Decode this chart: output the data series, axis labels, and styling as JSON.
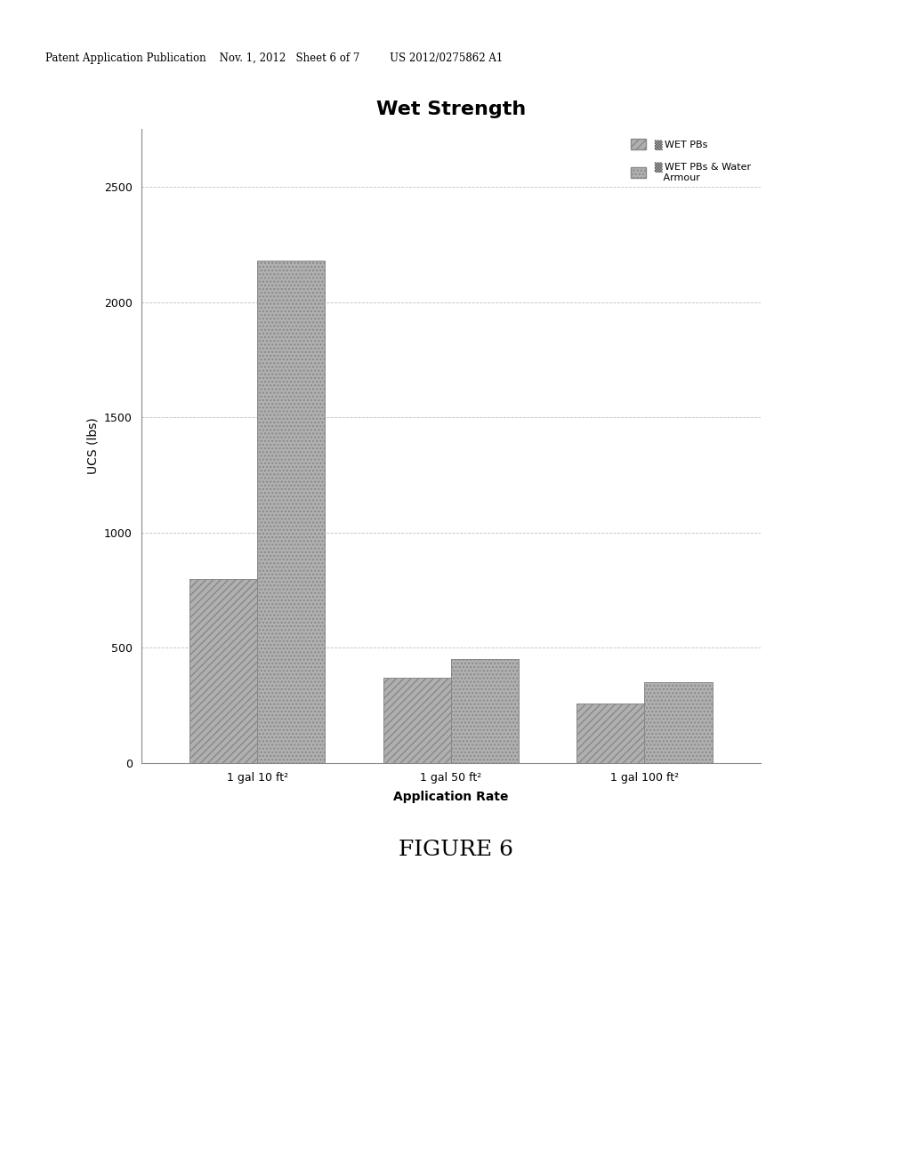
{
  "title": "Wet Strength",
  "xlabel": "Application Rate",
  "ylabel": "UCS (lbs)",
  "categories": [
    "1 gal 10 ft²",
    "1 gal 50 ft²",
    "1 gal 100 ft²"
  ],
  "series1_label": "▒ WET PBs",
  "series2_label": "▒ WET PBs & Water\n   Armour",
  "series1_values": [
    800,
    370,
    260
  ],
  "series2_values": [
    2180,
    450,
    350
  ],
  "ylim": [
    0,
    2750
  ],
  "yticks": [
    0,
    500,
    1000,
    1500,
    2000,
    2500
  ],
  "bar_color": "#b0b0b0",
  "bar_edge_color": "#888888",
  "grid_color": "#c0c0c0",
  "background_color": "#ffffff",
  "figure_background": "#e8e8e8",
  "title_fontsize": 16,
  "axis_fontsize": 9,
  "tick_fontsize": 9,
  "legend_fontsize": 8,
  "header_text": "Patent Application Publication    Nov. 1, 2012   Sheet 6 of 7         US 2012/0275862 A1",
  "figure_caption": "FIGURE 6"
}
